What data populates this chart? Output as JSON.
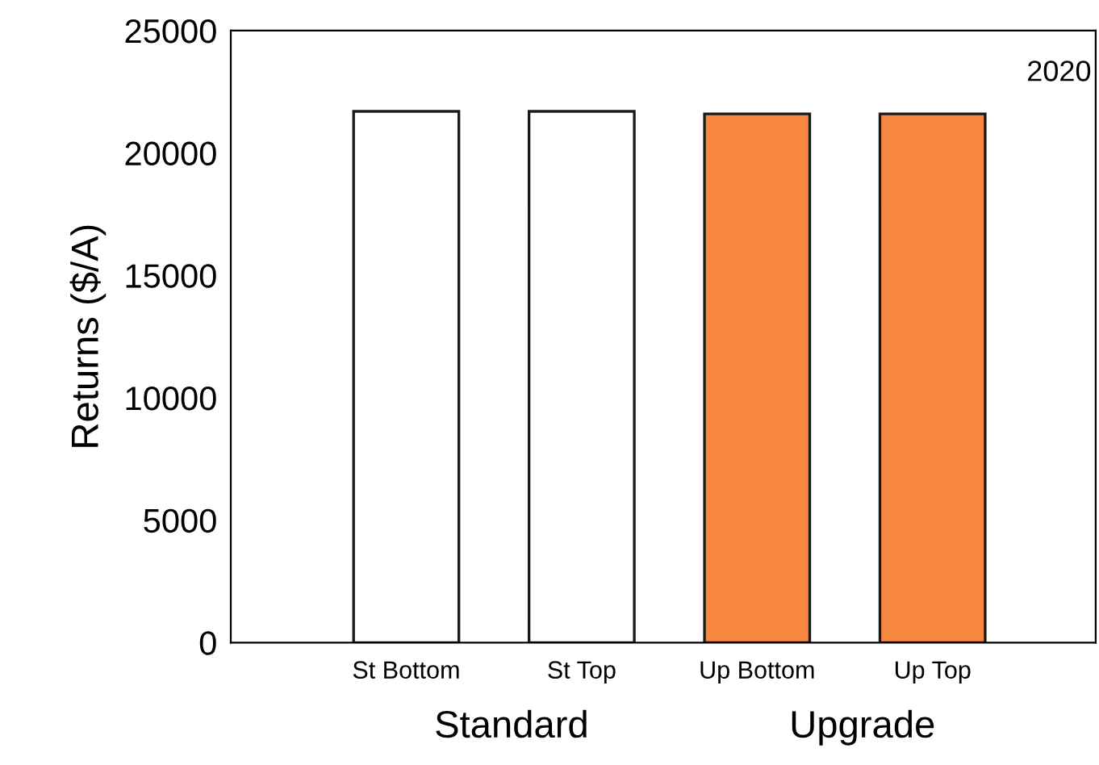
{
  "chart_data": {
    "type": "bar",
    "ylabel": "Returns ($/A)",
    "categories": [
      "St Bottom",
      "St Top",
      "Up Bottom",
      "Up Top"
    ],
    "values": [
      21700,
      21700,
      21600,
      21600
    ],
    "colors": [
      "#ffffff",
      "#ffffff",
      "#f8873f",
      "#f8873f"
    ],
    "ylim": [
      0,
      25000
    ],
    "yticks": [
      0,
      5000,
      10000,
      15000,
      20000,
      25000
    ],
    "grid": false,
    "legend": false,
    "annotations": [
      "2020",
      "Standard",
      "Upgrade"
    ]
  }
}
